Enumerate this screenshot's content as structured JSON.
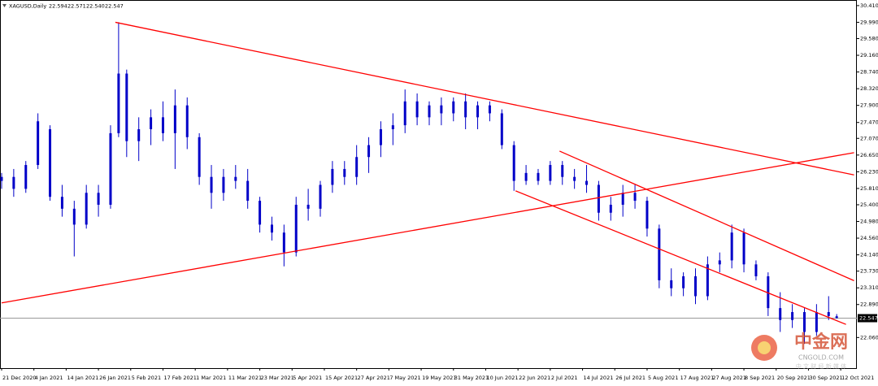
{
  "chart_data": {
    "type": "candlestick",
    "title": "XAGUSD,Daily",
    "header_values": [
      22.594,
      22.571,
      22.54,
      22.547
    ],
    "header_labels": [
      "22.594",
      "22.571",
      "22.540",
      "22.547"
    ],
    "color": "#0000c8",
    "ylim": [
      21.29,
      30.51
    ],
    "xlim": [
      -0.4,
      212
    ],
    "yticks": [
      {
        "value": 30.41,
        "label": "30.410"
      },
      {
        "value": 29.99,
        "label": "29.990"
      },
      {
        "value": 29.58,
        "label": "29.580"
      },
      {
        "value": 29.16,
        "label": "29.160"
      },
      {
        "value": 28.74,
        "label": "28.740"
      },
      {
        "value": 28.32,
        "label": "28.320"
      },
      {
        "value": 27.9,
        "label": "27.900"
      },
      {
        "value": 27.47,
        "label": "27.470"
      },
      {
        "value": 27.07,
        "label": "27.070"
      },
      {
        "value": 26.65,
        "label": "26.650"
      },
      {
        "value": 26.23,
        "label": "26.230"
      },
      {
        "value": 25.81,
        "label": "25.810"
      },
      {
        "value": 25.4,
        "label": "25.400"
      },
      {
        "value": 24.98,
        "label": "24.980"
      },
      {
        "value": 24.56,
        "label": "24.560"
      },
      {
        "value": 24.14,
        "label": "24.140"
      },
      {
        "value": 23.73,
        "label": "23.730"
      },
      {
        "value": 23.31,
        "label": "23.310"
      },
      {
        "value": 22.89,
        "label": "22.890"
      },
      {
        "value": 22.06,
        "label": "22.060"
      }
    ],
    "xticks": [
      {
        "value": 0,
        "label": "21 Dec 2020"
      },
      {
        "value": 8,
        "label": "4 Jan 2021"
      },
      {
        "value": 16,
        "label": "14 Jan 2021"
      },
      {
        "value": 24,
        "label": "26 Jan 2021"
      },
      {
        "value": 32,
        "label": "5 Feb 2021"
      },
      {
        "value": 40,
        "label": "17 Feb 2021"
      },
      {
        "value": 48,
        "label": "1 Mar 2021"
      },
      {
        "value": 56,
        "label": "11 Mar 2021"
      },
      {
        "value": 64,
        "label": "23 Mar 2021"
      },
      {
        "value": 72,
        "label": "5 Apr 2021"
      },
      {
        "value": 80,
        "label": "15 Apr 2021"
      },
      {
        "value": 88,
        "label": "27 Apr 2021"
      },
      {
        "value": 96,
        "label": "7 May 2021"
      },
      {
        "value": 104,
        "label": "19 May 2021"
      },
      {
        "value": 112,
        "label": "31 May 2021"
      },
      {
        "value": 120,
        "label": "10 Jun 2021"
      },
      {
        "value": 128,
        "label": "22 Jun 2021"
      },
      {
        "value": 136,
        "label": "2 Jul 2021"
      },
      {
        "value": 144,
        "label": "14 Jul 2021"
      },
      {
        "value": 152,
        "label": "26 Jul 2021"
      },
      {
        "value": 160,
        "label": "5 Aug 2021"
      },
      {
        "value": 168,
        "label": "17 Aug 2021"
      },
      {
        "value": 176,
        "label": "27 Aug 2021"
      },
      {
        "value": 184,
        "label": "8 Sep 2021"
      },
      {
        "value": 192,
        "label": "20 Sep 2021"
      },
      {
        "value": 200,
        "label": "30 Sep 2021"
      },
      {
        "value": 208,
        "label": "12 Oct 2021"
      }
    ],
    "x": [
      0,
      3,
      6,
      9,
      12,
      15,
      18,
      21,
      24,
      27,
      29,
      31,
      34,
      37,
      40,
      43,
      46,
      49,
      52,
      55,
      58,
      61,
      64,
      67,
      70,
      73,
      76,
      79,
      82,
      85,
      88,
      91,
      94,
      97,
      100,
      103,
      106,
      109,
      112,
      115,
      118,
      121,
      124,
      127,
      130,
      133,
      136,
      139,
      142,
      145,
      148,
      151,
      154,
      157,
      160,
      163,
      166,
      169,
      172,
      175,
      178,
      181,
      184,
      187,
      190,
      193,
      196,
      199,
      202,
      205,
      207
    ],
    "open": [
      26.0,
      26.1,
      25.8,
      26.4,
      27.3,
      25.6,
      25.3,
      24.9,
      25.7,
      25.4,
      27.2,
      28.7,
      27.0,
      27.3,
      27.6,
      27.2,
      27.9,
      27.1,
      26.1,
      25.7,
      26.1,
      26.0,
      25.5,
      24.9,
      24.7,
      24.2,
      25.4,
      25.3,
      25.9,
      26.3,
      26.1,
      26.6,
      26.9,
      27.3,
      27.4,
      28.0,
      27.6,
      27.9,
      27.7,
      28.0,
      27.6,
      27.9,
      27.7,
      26.9,
      26.0,
      26.2,
      26.0,
      26.4,
      26.1,
      26.0,
      25.9,
      25.2,
      25.4,
      25.7,
      25.5,
      24.8,
      23.5,
      23.3,
      23.6,
      23.1,
      23.9,
      24.0,
      24.7,
      23.9,
      23.6,
      22.8,
      22.5,
      22.7,
      22.2,
      22.7,
      22.594
    ],
    "high": [
      26.2,
      26.3,
      26.5,
      27.7,
      27.4,
      25.9,
      25.5,
      25.9,
      25.9,
      27.4,
      29.99,
      28.8,
      27.6,
      27.8,
      28.0,
      28.3,
      28.1,
      27.2,
      26.4,
      26.3,
      26.4,
      26.3,
      25.6,
      25.1,
      24.9,
      25.6,
      25.8,
      26.0,
      26.5,
      26.5,
      26.9,
      27.1,
      27.5,
      27.7,
      28.3,
      28.2,
      28.0,
      28.1,
      28.1,
      28.2,
      28.0,
      28.0,
      27.8,
      27.0,
      26.4,
      26.3,
      26.5,
      26.5,
      26.3,
      26.4,
      26.0,
      25.6,
      25.9,
      25.9,
      25.6,
      24.9,
      23.8,
      23.7,
      23.8,
      24.1,
      24.2,
      24.9,
      24.8,
      24.0,
      23.7,
      23.2,
      22.9,
      22.8,
      22.9,
      23.1,
      22.65
    ],
    "low": [
      25.8,
      25.6,
      25.7,
      26.3,
      25.5,
      25.1,
      24.1,
      24.8,
      25.1,
      25.3,
      27.1,
      26.6,
      26.5,
      26.9,
      27.0,
      26.3,
      26.8,
      25.9,
      25.3,
      25.5,
      25.8,
      25.3,
      24.7,
      24.5,
      23.85,
      24.1,
      25.0,
      25.1,
      25.7,
      25.9,
      25.9,
      26.2,
      26.6,
      26.9,
      27.2,
      27.4,
      27.4,
      27.4,
      27.5,
      27.3,
      27.3,
      27.5,
      26.8,
      25.75,
      25.9,
      25.9,
      25.9,
      25.9,
      25.8,
      25.7,
      25.0,
      25.0,
      25.1,
      25.3,
      24.6,
      23.3,
      23.1,
      23.1,
      22.9,
      23.0,
      23.7,
      23.8,
      23.7,
      23.5,
      22.6,
      22.2,
      22.3,
      21.9,
      22.1,
      22.5,
      22.54
    ],
    "close": [
      26.1,
      25.8,
      26.4,
      27.5,
      25.6,
      25.3,
      24.9,
      25.7,
      25.4,
      27.2,
      28.7,
      27.0,
      27.3,
      27.6,
      27.2,
      27.9,
      27.1,
      26.1,
      25.7,
      26.1,
      26.0,
      25.5,
      24.9,
      24.7,
      24.2,
      25.4,
      25.3,
      25.9,
      26.3,
      26.1,
      26.6,
      26.9,
      27.3,
      27.4,
      28.0,
      27.6,
      27.9,
      27.7,
      28.0,
      27.6,
      27.9,
      27.7,
      26.9,
      26.0,
      26.2,
      26.0,
      26.4,
      26.1,
      26.0,
      25.9,
      25.2,
      25.4,
      25.7,
      25.5,
      24.8,
      23.5,
      23.3,
      23.6,
      23.1,
      23.9,
      24.0,
      24.7,
      23.9,
      23.6,
      22.8,
      22.5,
      22.7,
      22.2,
      22.7,
      22.6,
      22.547
    ],
    "trendline_color": "#ff0000",
    "trendlines": [
      {
        "x": [
          28.2,
          211.3
        ],
        "y": [
          29.99,
          26.15
        ]
      },
      {
        "x": [
          0,
          211.3
        ],
        "y": [
          22.93,
          26.71
        ]
      },
      {
        "x": [
          138.3,
          211.3
        ],
        "y": [
          26.75,
          23.49
        ]
      },
      {
        "x": [
          127.4,
          209.3
        ],
        "y": [
          25.75,
          22.39
        ]
      }
    ],
    "price_line": {
      "value": 22.547,
      "label": "22.547"
    },
    "watermark": {
      "logo": "中金网",
      "site": "CNGOLD.COM",
      "slogan": "中 文 财 经 新 媒 体"
    }
  }
}
